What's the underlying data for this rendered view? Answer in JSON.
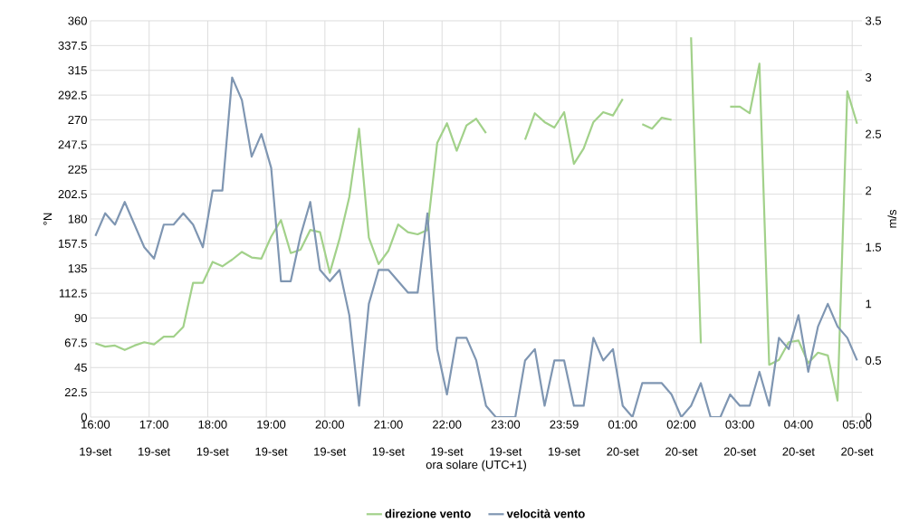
{
  "chart_data": {
    "type": "line",
    "categories": [
      "16:00 19-set",
      null,
      null,
      null,
      null,
      null,
      "17:00 19-set",
      null,
      null,
      null,
      null,
      null,
      "18:00 19-set",
      null,
      null,
      null,
      null,
      null,
      "19:00 19-set",
      null,
      null,
      null,
      null,
      null,
      "20:00 19-set",
      null,
      null,
      null,
      null,
      null,
      "21:00 19-set",
      null,
      null,
      null,
      null,
      null,
      "22:00 19-set",
      null,
      null,
      null,
      null,
      null,
      "23:00 19-set",
      null,
      null,
      null,
      null,
      null,
      "23:59 19-set",
      null,
      null,
      null,
      null,
      null,
      "01:00 20-set",
      null,
      null,
      null,
      null,
      null,
      "02:00 20-set",
      null,
      null,
      null,
      null,
      null,
      "03:00 20-set",
      null,
      null,
      null,
      null,
      null,
      "04:00 20-set",
      null,
      null,
      null,
      null,
      null,
      "05:00 20-set"
    ],
    "series": [
      {
        "name": "direzione vento",
        "color": "#a2d18a",
        "values": [
          67,
          64,
          65,
          61,
          65,
          68,
          66,
          73,
          73,
          82,
          122,
          122,
          141,
          137,
          143,
          150,
          145,
          144,
          164,
          179,
          149,
          152,
          170,
          168,
          131,
          162,
          200,
          262,
          163,
          139,
          151,
          175,
          168,
          166,
          170,
          249,
          267,
          242,
          265,
          271,
          258,
          null,
          null,
          null,
          252,
          276,
          268,
          263,
          277,
          230,
          244,
          268,
          277,
          274,
          289,
          null,
          266,
          262,
          272,
          270,
          null,
          345,
          67,
          null,
          null,
          282,
          282,
          276,
          321,
          47.5,
          52,
          68,
          69.5,
          49,
          58.5,
          56,
          15,
          296,
          266.5
        ]
      },
      {
        "name": "velocità vento",
        "color": "#7f96b2",
        "axis": "y2",
        "values": [
          1.6,
          1.8,
          1.7,
          1.9,
          1.7,
          1.5,
          1.4,
          1.7,
          1.7,
          1.8,
          1.7,
          1.5,
          2.0,
          2.0,
          3.0,
          2.8,
          2.3,
          2.5,
          2.2,
          1.2,
          1.2,
          1.6,
          1.9,
          1.3,
          1.2,
          1.3,
          0.9,
          0.1,
          1.0,
          1.3,
          1.3,
          1.2,
          1.1,
          1.1,
          1.8,
          0.6,
          0.2,
          0.7,
          0.7,
          0.5,
          0.1,
          0,
          0,
          0,
          0.5,
          0.6,
          0.1,
          0.5,
          0.5,
          0.1,
          0.1,
          0.7,
          0.5,
          0.6,
          0.1,
          0,
          0.3,
          0.3,
          0.3,
          0.2,
          0,
          0.1,
          0.3,
          0,
          0,
          0.2,
          0.1,
          0.1,
          0.4,
          0.1,
          0.7,
          0.6,
          0.9,
          0.4,
          0.8,
          1.0,
          0.8,
          0.7,
          0.5
        ]
      }
    ],
    "xlabel": "ora solare (UTC+1)",
    "ylabel": "°N",
    "y2label": "m/s",
    "ylim": [
      0,
      360
    ],
    "yticks": [
      0,
      22.5,
      45,
      67.5,
      90,
      112.5,
      135,
      157.5,
      180,
      202.5,
      225,
      247.5,
      270,
      292.5,
      315,
      337.5,
      360
    ],
    "y2lim": [
      0,
      3.5
    ],
    "y2ticks": [
      0,
      0.5,
      1,
      1.5,
      2,
      2.5,
      3,
      3.5
    ],
    "grid": true,
    "legend": "bottom",
    "marker": "none",
    "line_style": "solid"
  }
}
